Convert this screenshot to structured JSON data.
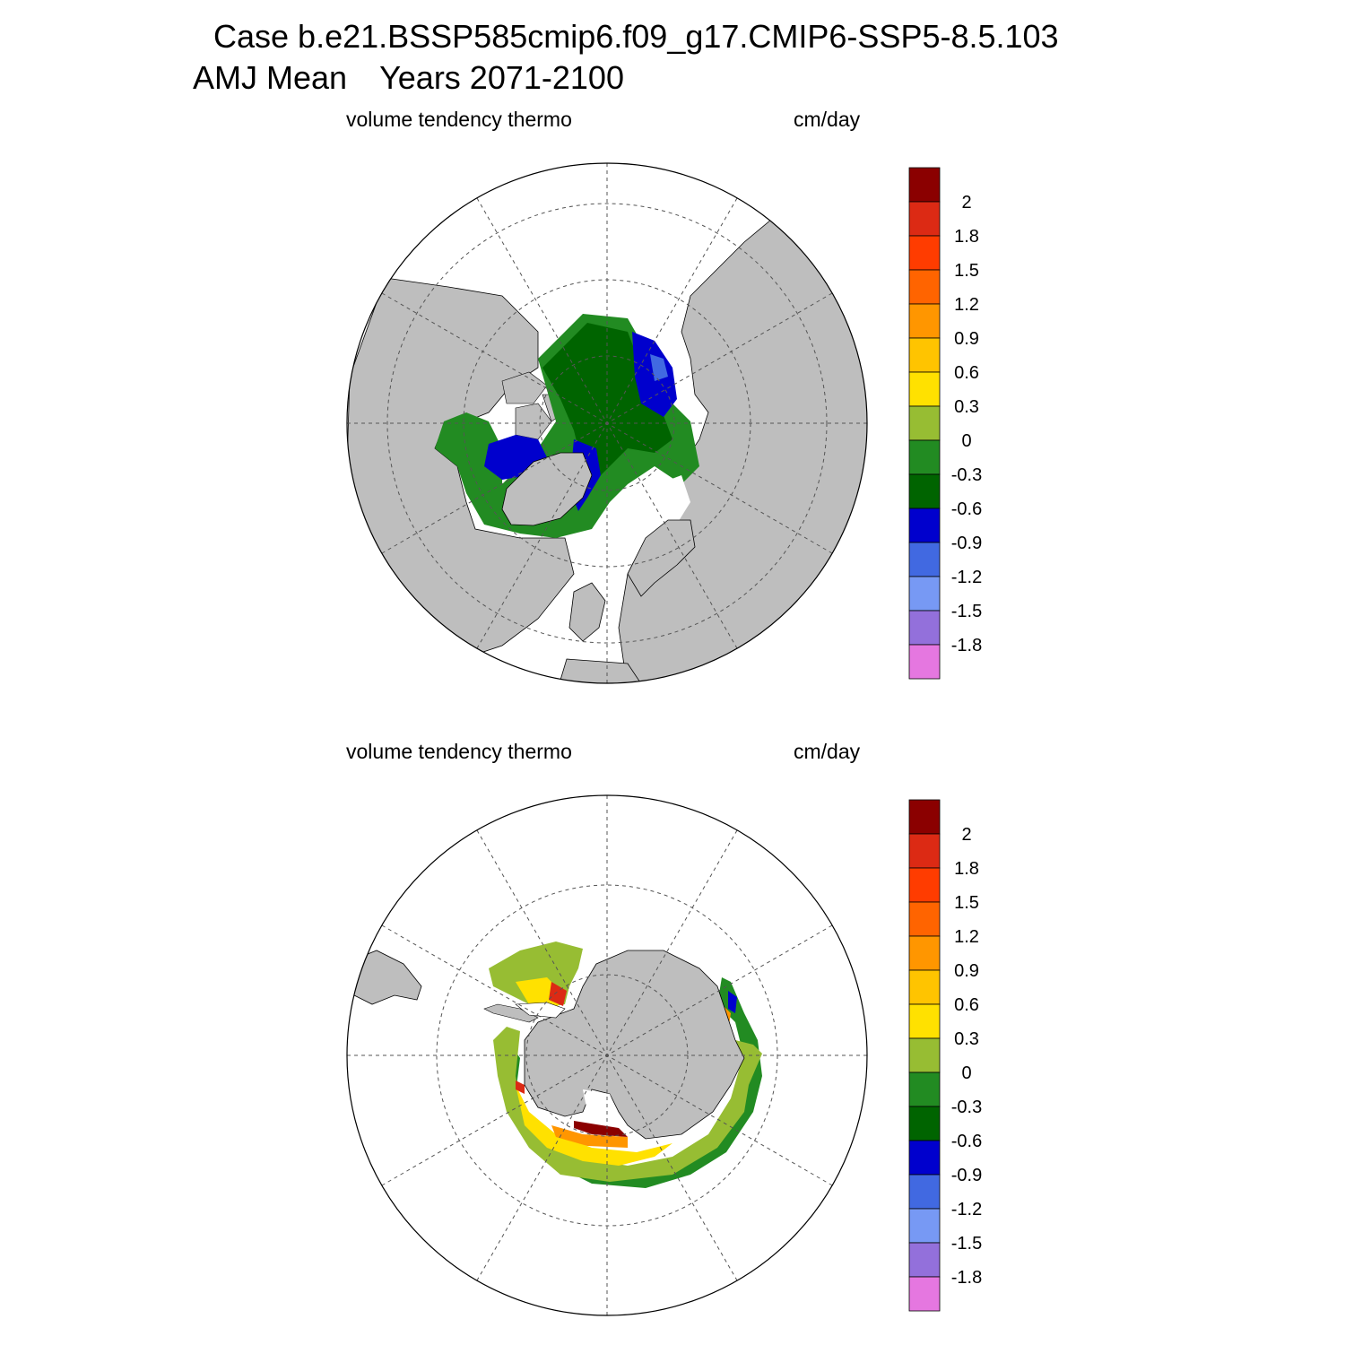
{
  "header": {
    "case_title": "Case b.e21.BSSP585cmip6.f09_g17.CMIP6-SSP5-8.5.103",
    "season": "AMJ Mean",
    "years": "Years 2071-2100"
  },
  "panels": [
    {
      "id": "north",
      "variable": "volume tendency thermo",
      "units": "cm/day"
    },
    {
      "id": "south",
      "variable": "volume tendency thermo",
      "units": "cm/day"
    }
  ],
  "colorbar": {
    "tick_labels": [
      "2",
      "1.8",
      "1.5",
      "1.2",
      "0.9",
      "0.6",
      "0.3",
      "0",
      "-0.3",
      "-0.6",
      "-0.9",
      "-1.2",
      "-1.5",
      "-1.8"
    ],
    "colors": [
      "#8b0000",
      "#dc2a14",
      "#ff3c00",
      "#ff6400",
      "#ff9600",
      "#ffc400",
      "#ffe100",
      "#97bd33",
      "#228b22",
      "#006400",
      "#0000cd",
      "#4169e1",
      "#7799f4",
      "#9370db",
      "#e577e0"
    ]
  },
  "colors": {
    "land": "#bebebe",
    "ice_free": "#ffffff",
    "grid": "#555555"
  }
}
